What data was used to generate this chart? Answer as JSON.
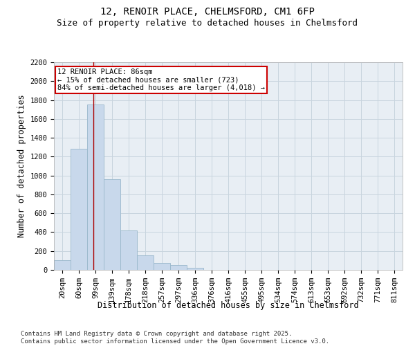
{
  "title_line1": "12, RENOIR PLACE, CHELMSFORD, CM1 6FP",
  "title_line2": "Size of property relative to detached houses in Chelmsford",
  "xlabel": "Distribution of detached houses by size in Chelmsford",
  "ylabel": "Number of detached properties",
  "categories": [
    "20sqm",
    "60sqm",
    "99sqm",
    "139sqm",
    "178sqm",
    "218sqm",
    "257sqm",
    "297sqm",
    "336sqm",
    "376sqm",
    "416sqm",
    "455sqm",
    "495sqm",
    "534sqm",
    "574sqm",
    "613sqm",
    "653sqm",
    "692sqm",
    "732sqm",
    "771sqm",
    "811sqm"
  ],
  "values": [
    100,
    1280,
    1750,
    960,
    420,
    155,
    75,
    50,
    25,
    0,
    0,
    0,
    0,
    0,
    0,
    0,
    0,
    0,
    0,
    0,
    0
  ],
  "bar_color": "#c8d8eb",
  "bar_edge_color": "#9ab8cc",
  "vline_x_idx": 1.88,
  "vline_color": "#aa0000",
  "annotation_box_line1": "12 RENOIR PLACE: 86sqm",
  "annotation_box_line2": "← 15% of detached houses are smaller (723)",
  "annotation_box_line3": "84% of semi-detached houses are larger (4,018) →",
  "annotation_box_color": "#cc0000",
  "ylim": [
    0,
    2200
  ],
  "yticks": [
    0,
    200,
    400,
    600,
    800,
    1000,
    1200,
    1400,
    1600,
    1800,
    2000,
    2200
  ],
  "grid_color": "#c8d4de",
  "bg_color": "#e8eef4",
  "footnote": "Contains HM Land Registry data © Crown copyright and database right 2025.\nContains public sector information licensed under the Open Government Licence v3.0.",
  "title_fontsize": 10,
  "subtitle_fontsize": 9,
  "axis_label_fontsize": 8.5,
  "tick_fontsize": 7.5,
  "annotation_fontsize": 7.5,
  "footnote_fontsize": 6.5
}
